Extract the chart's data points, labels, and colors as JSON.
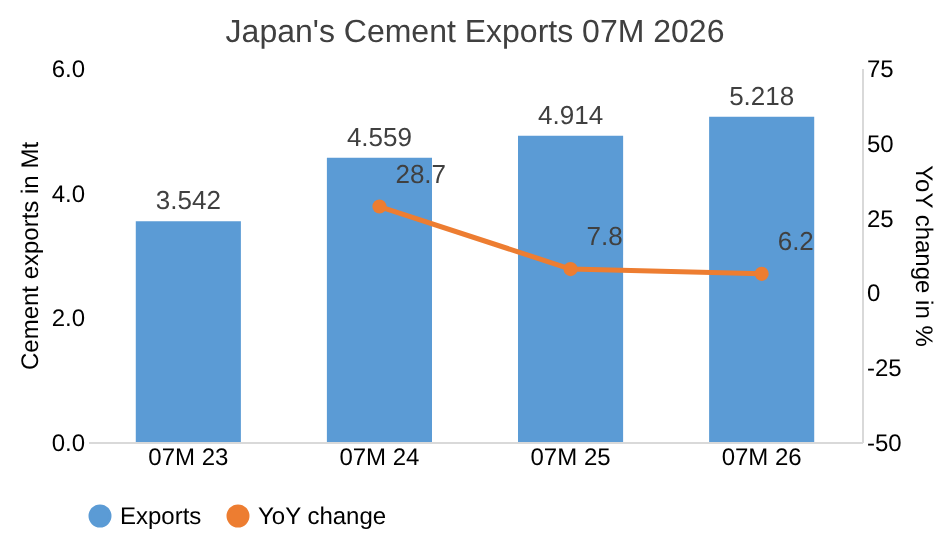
{
  "chart_data": {
    "type": "bar",
    "title": "Japan's Cement Exports 07M 2026",
    "categories": [
      "07M 23",
      "07M 24",
      "07M 25",
      "07M 26"
    ],
    "series": [
      {
        "name": "Exports",
        "color": "#5b9bd5",
        "values": [
          3.542,
          4.559,
          4.914,
          5.218
        ]
      },
      {
        "name": "YoY change",
        "type": "line",
        "axis": "y2",
        "color": "#ed7d31",
        "values": [
          null,
          28.7,
          7.8,
          6.2
        ]
      }
    ],
    "ylabel": "Cement exports in Mt",
    "y2label": "YoY change in %",
    "ylim": [
      0,
      6
    ],
    "yticks": [
      {
        "value": 0,
        "label": "0.0"
      },
      {
        "value": 2,
        "label": "2.0"
      },
      {
        "value": 4,
        "label": "4.0"
      },
      {
        "value": 6,
        "label": "6.0"
      }
    ],
    "y2lim": [
      -50,
      75
    ],
    "y2ticks": [
      -50,
      -25,
      0,
      25,
      50,
      75
    ],
    "data_labels": true,
    "marker": "circle",
    "legend": "bottom",
    "grid": false
  }
}
